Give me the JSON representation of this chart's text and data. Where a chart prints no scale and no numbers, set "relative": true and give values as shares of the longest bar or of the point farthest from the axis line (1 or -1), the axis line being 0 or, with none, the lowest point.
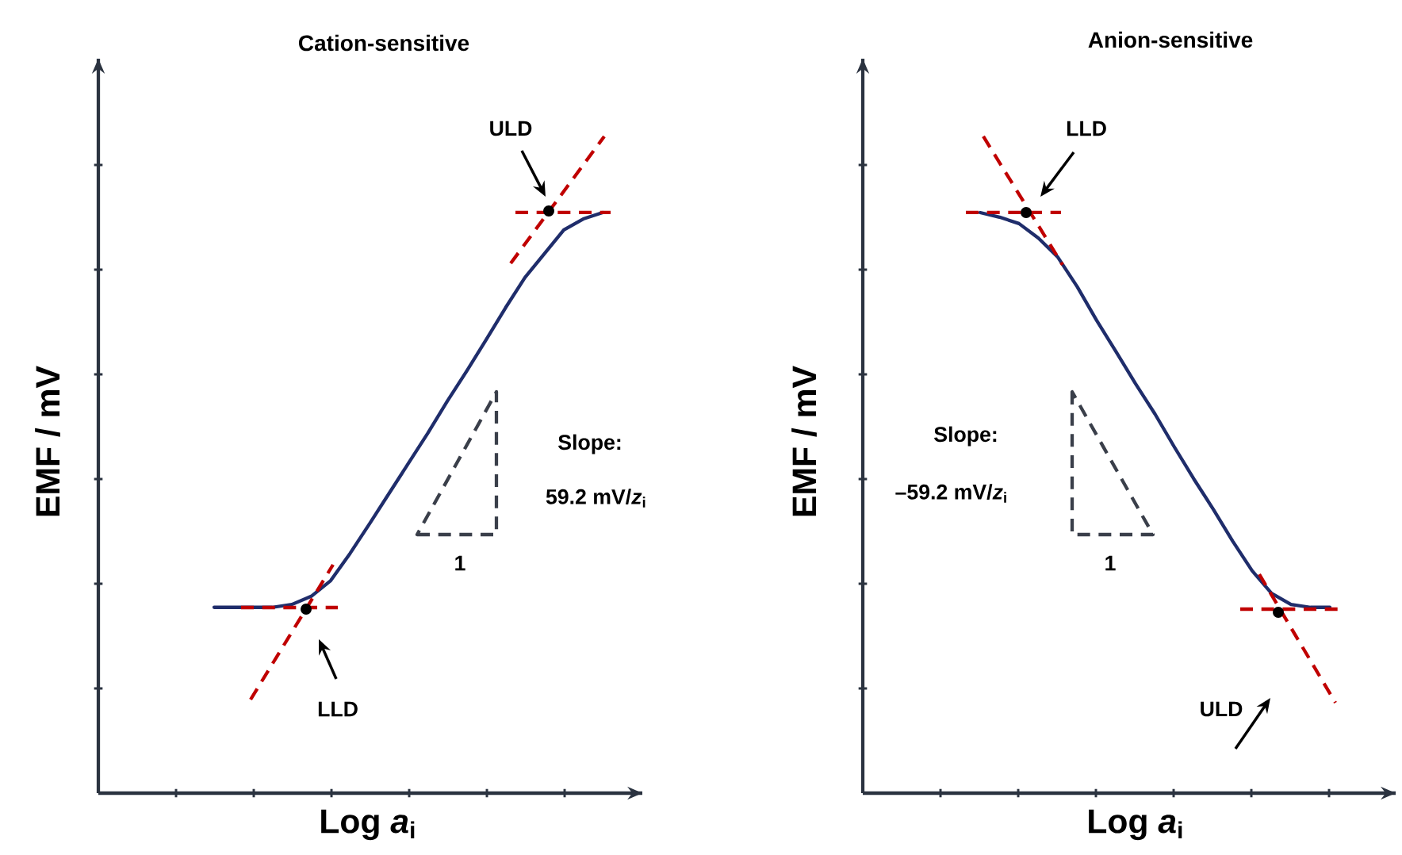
{
  "chart_data": [
    {
      "type": "line",
      "title": "Cation-sensitive",
      "xlabel": "Log *a*$_{i}$",
      "ylabel": "EMF  / mV",
      "relative": true,
      "categories": [
        null,
        null,
        null,
        null,
        null,
        null,
        null,
        null,
        null,
        null,
        null,
        null,
        null,
        null,
        null,
        null,
        null,
        null,
        null,
        null,
        null
      ],
      "series": [
        {
          "color": "#1f2d6b",
          "line_style": "solid",
          "values": [
            0.32,
            0.32,
            0.32,
            0.32,
            0.325,
            0.339,
            0.366,
            0.413,
            0.464,
            0.516,
            0.568,
            0.62,
            0.675,
            0.727,
            0.781,
            0.836,
            0.888,
            0.929,
            0.97,
            0.989,
            1.0
          ]
        }
      ],
      "annotations": [
        "LLD",
        "ULD",
        "Slope:",
        "59.2 mV/*z*$_{i}$",
        "1"
      ]
    },
    {
      "type": "line",
      "title": "Anion-sensitive",
      "xlabel": "Log *a*$_{i}$",
      "ylabel": "EMF  / mV",
      "relative": true,
      "categories": [
        null,
        null,
        null,
        null,
        null,
        null,
        null,
        null,
        null,
        null,
        null,
        null,
        null,
        null,
        null,
        null,
        null,
        null,
        null
      ],
      "series": [
        {
          "color": "#1f2d6b",
          "line_style": "solid",
          "values": [
            1.0,
            0.992,
            0.981,
            0.956,
            0.923,
            0.872,
            0.814,
            0.76,
            0.705,
            0.653,
            0.596,
            0.541,
            0.489,
            0.434,
            0.383,
            0.344,
            0.325,
            0.32,
            0.32
          ]
        }
      ],
      "annotations": [
        "LLD",
        "ULD",
        "Slope:",
        "–59.2 mV/*z*$_{i}$",
        "1"
      ]
    }
  ]
}
